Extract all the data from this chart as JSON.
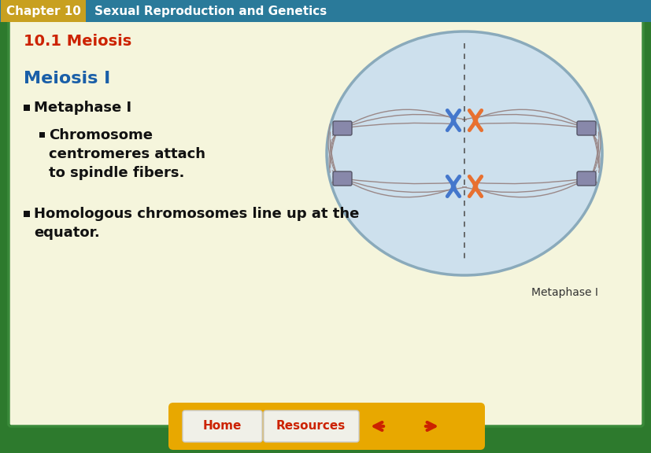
{
  "header_bg": "#2a7a9a",
  "header_chapter_bg": "#c8a020",
  "header_chapter_text": "Chapter 10",
  "header_title_text": "Sexual Reproduction and Genetics",
  "header_text_color": "#ffffff",
  "outer_border_color": "#2d7a2d",
  "main_bg": "#f5f5dc",
  "section_title": "10.1 Meiosis",
  "section_title_color": "#cc2200",
  "subsection_title": "Meiosis I",
  "subsection_title_color": "#1a5fa8",
  "bullet1": "Metaphase I",
  "bullet1_color": "#111111",
  "bullet2_line1": "Chromosome",
  "bullet2_line2": "centromeres attach",
  "bullet2_line3": "to spindle fibers.",
  "bullet2_color": "#111111",
  "bullet3_line1": "Homologous chromosomes line up at the",
  "bullet3_line2": "equator.",
  "bullet3_color": "#111111",
  "image_caption": "Metaphase I",
  "footer_bg": "#e8a800",
  "footer_btn1": "Home",
  "footer_btn2": "Resources",
  "footer_text_color": "#cc2200",
  "chr_blue": "#4477cc",
  "chr_orange": "#e87030",
  "spindle_color": "#9a8888",
  "cell_face": "#cde0ed",
  "cell_edge": "#8aaabb",
  "centrosome_color": "#8888aa"
}
